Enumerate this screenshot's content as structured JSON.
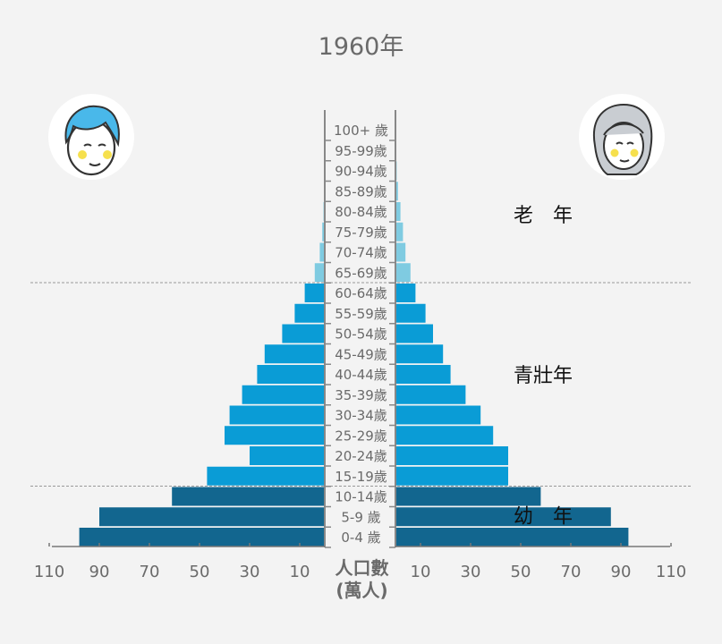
{
  "chart_data": {
    "type": "bar",
    "title": "1960年",
    "categories": [
      "0-4 歲",
      "5-9 歲",
      "10-14歲",
      "15-19歲",
      "20-24歲",
      "25-29歲",
      "30-34歲",
      "35-39歲",
      "40-44歲",
      "45-49歲",
      "50-54歲",
      "55-59歲",
      "60-64歲",
      "65-69歲",
      "70-74歲",
      "75-79歲",
      "80-84歲",
      "85-89歲",
      "90-94歲",
      "95-99歲",
      "100+ 歲"
    ],
    "series": [
      {
        "side": "left",
        "values": [
          98,
          90,
          61,
          47,
          30,
          40,
          38,
          33,
          27,
          24,
          17,
          12,
          8,
          4,
          2,
          1,
          0.5,
          0.2,
          0.1,
          0.05,
          0
        ]
      },
      {
        "side": "right",
        "values": [
          93,
          86,
          58,
          45,
          45,
          39,
          34,
          28,
          22,
          19,
          15,
          12,
          8,
          6,
          4,
          3,
          2,
          1,
          0.5,
          0.2,
          0
        ]
      }
    ],
    "xlabel": "人口數\n(萬人)",
    "xticks": [
      "110",
      "90",
      "70",
      "50",
      "30",
      "10",
      "10",
      "30",
      "50",
      "70",
      "90",
      "110"
    ],
    "xlim": [
      0,
      110
    ],
    "age_groups": [
      {
        "label": "幼　年",
        "bands": [
          0,
          2
        ]
      },
      {
        "label": "青壯年",
        "bands": [
          3,
          12
        ]
      },
      {
        "label": "老　年",
        "bands": [
          13,
          20
        ]
      }
    ],
    "colors": {
      "youth": "#12668f",
      "adult": "#0a9cd6",
      "elder": "#7fcbe1",
      "guide": "#999999"
    }
  },
  "icons": {
    "male": "boy-face-icon",
    "female": "girl-face-icon"
  }
}
